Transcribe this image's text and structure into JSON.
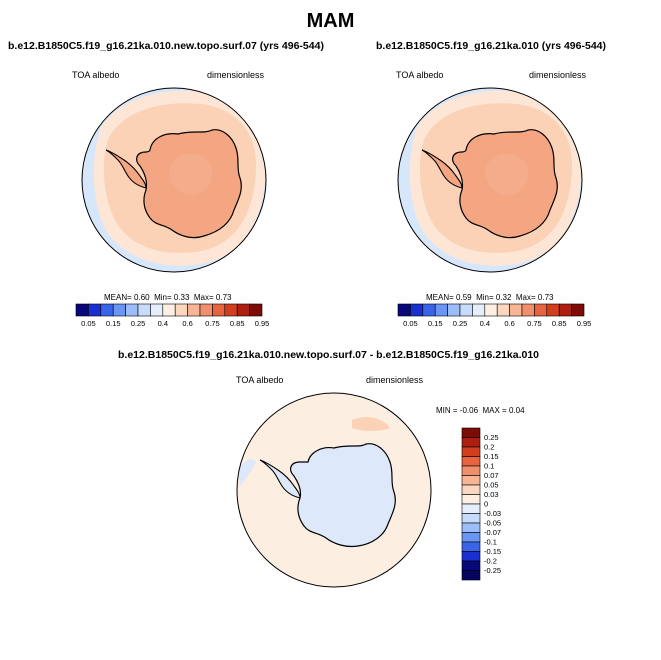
{
  "main_title": "MAM",
  "panels": [
    {
      "title": "b.e12.B1850C5.f19_g16.21ka.010.new.topo.surf.07 (yrs 496-544)",
      "variable": "TOA albedo",
      "units": "dimensionless",
      "stats": {
        "mean_label": "MEAN=",
        "mean": "0.60",
        "min_label": "Min=",
        "min": "0.33",
        "max_label": "Max=",
        "max": "0.73"
      }
    },
    {
      "title": "b.e12.B1850C5.f19_g16.21ka.010 (yrs 496-544)",
      "variable": "TOA albedo",
      "units": "dimensionless",
      "stats": {
        "mean_label": "MEAN=",
        "mean": "0.59",
        "min_label": "Min=",
        "min": "0.32",
        "max_label": "Max=",
        "max": "0.73"
      }
    },
    {
      "title": "b.e12.B1850C5.f19_g16.21ka.010.new.topo.surf.07 - b.e12.B1850C5.f19_g16.21ka.010",
      "variable": "TOA albedo",
      "units": "dimensionless",
      "stats": {
        "min_label": "MIN =",
        "min": "-0.06",
        "max_label": "MAX =",
        "max": "0.04"
      }
    }
  ],
  "colorbar_horizontal": {
    "labels": [
      "0.05",
      "0.15",
      "0.25",
      "0.4",
      "0.6",
      "0.75",
      "0.85",
      "0.95"
    ],
    "colors": [
      "#08087a",
      "#1a2fd0",
      "#3a64e8",
      "#6b95f2",
      "#9dbdf8",
      "#c7dcfb",
      "#e6eefc",
      "#fdf0e3",
      "#fbd7bf",
      "#f7b596",
      "#f08f6c",
      "#e6643f",
      "#d23f1f",
      "#ad1f10",
      "#7d0c06"
    ]
  },
  "colorbar_vertical": {
    "labels": [
      "0.25",
      "0.2",
      "0.15",
      "0.1",
      "0.07",
      "0.05",
      "0.03",
      "0",
      "-0.03",
      "-0.05",
      "-0.07",
      "-0.1",
      "-0.15",
      "-0.2",
      "-0.25"
    ],
    "colors": [
      "#7d0c06",
      "#ad1f10",
      "#d23f1f",
      "#e6643f",
      "#f08f6c",
      "#f7b596",
      "#fbd7bf",
      "#fdf0e3",
      "#e6eefc",
      "#c7dcfb",
      "#9dbdf8",
      "#6b95f2",
      "#3a64e8",
      "#1a2fd0",
      "#08087a",
      "#050560"
    ]
  },
  "map_colors": {
    "outer_ring": "#d6e6fb",
    "band_light": "#fde6d6",
    "band_mid": "#fbd2b6",
    "antarctica": "#f4a582",
    "interior": "#f7b596",
    "diff_background": "#fdeee2",
    "diff_land": "#dde9fb",
    "coast": "#000000"
  }
}
